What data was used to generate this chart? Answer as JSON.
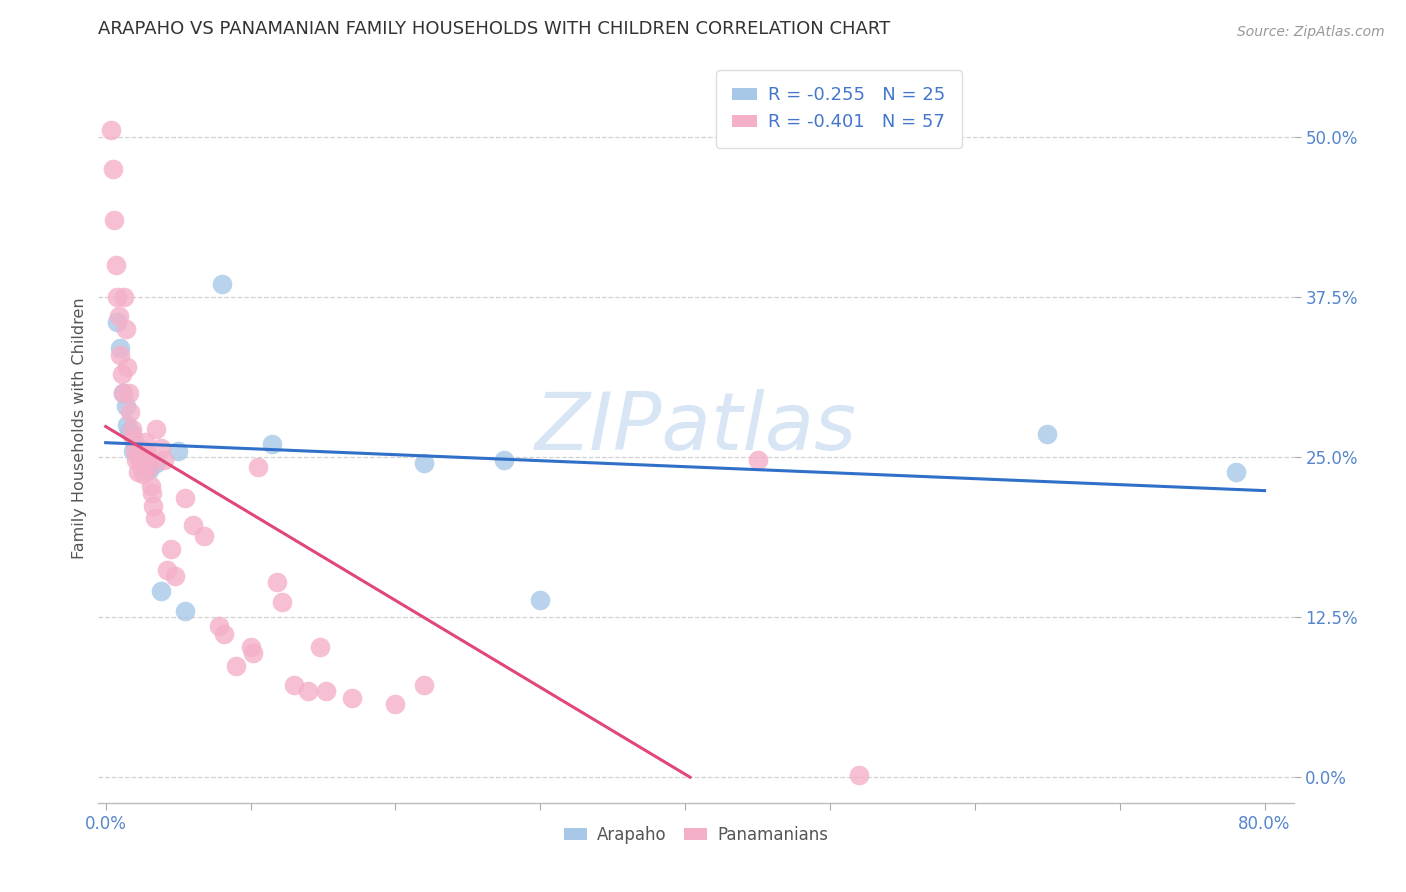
{
  "title": "ARAPAHO VS PANAMANIAN FAMILY HOUSEHOLDS WITH CHILDREN CORRELATION CHART",
  "source": "Source: ZipAtlas.com",
  "ylabel": "Family Households with Children",
  "watermark": "ZIPatlas",
  "blue_color": "#a8c8e8",
  "pink_color": "#f4b0c8",
  "blue_line_color": "#3070c8",
  "pink_line_color": "#e04878",
  "legend_blue_text": "R = -0.255   N = 25",
  "legend_pink_text": "R = -0.401   N = 57",
  "xlim": [
    -0.005,
    0.82
  ],
  "ylim": [
    -0.02,
    0.565
  ],
  "ytick_positions": [
    0.0,
    0.125,
    0.25,
    0.375,
    0.5
  ],
  "ytick_labels": [
    "0.0%",
    "12.5%",
    "25.0%",
    "37.5%",
    "50.0%"
  ],
  "xtick_positions": [
    0.0,
    0.1,
    0.2,
    0.3,
    0.4,
    0.5,
    0.6,
    0.7,
    0.8
  ],
  "arapaho_x": [
    0.008,
    0.01,
    0.012,
    0.014,
    0.015,
    0.016,
    0.018,
    0.019,
    0.02,
    0.022,
    0.025,
    0.026,
    0.028,
    0.03,
    0.035,
    0.038,
    0.05,
    0.055,
    0.08,
    0.115,
    0.22,
    0.275,
    0.3,
    0.65,
    0.78
  ],
  "arapaho_y": [
    0.355,
    0.335,
    0.3,
    0.29,
    0.275,
    0.27,
    0.268,
    0.255,
    0.26,
    0.25,
    0.255,
    0.245,
    0.24,
    0.24,
    0.245,
    0.145,
    0.255,
    0.13,
    0.385,
    0.26,
    0.245,
    0.248,
    0.138,
    0.268,
    0.238
  ],
  "panamanian_x": [
    0.004,
    0.005,
    0.006,
    0.007,
    0.008,
    0.009,
    0.01,
    0.011,
    0.012,
    0.013,
    0.014,
    0.015,
    0.016,
    0.017,
    0.018,
    0.019,
    0.02,
    0.021,
    0.022,
    0.023,
    0.024,
    0.025,
    0.026,
    0.027,
    0.028,
    0.029,
    0.03,
    0.031,
    0.032,
    0.033,
    0.034,
    0.035,
    0.038,
    0.04,
    0.042,
    0.045,
    0.048,
    0.055,
    0.06,
    0.068,
    0.078,
    0.082,
    0.09,
    0.1,
    0.102,
    0.105,
    0.118,
    0.122,
    0.13,
    0.14,
    0.148,
    0.152,
    0.17,
    0.2,
    0.22,
    0.45,
    0.52
  ],
  "panamanian_y": [
    0.505,
    0.475,
    0.435,
    0.4,
    0.375,
    0.36,
    0.33,
    0.315,
    0.3,
    0.375,
    0.35,
    0.32,
    0.3,
    0.285,
    0.272,
    0.265,
    0.255,
    0.248,
    0.238,
    0.255,
    0.248,
    0.242,
    0.237,
    0.262,
    0.255,
    0.247,
    0.242,
    0.227,
    0.222,
    0.212,
    0.202,
    0.272,
    0.257,
    0.248,
    0.162,
    0.178,
    0.157,
    0.218,
    0.197,
    0.188,
    0.118,
    0.112,
    0.087,
    0.102,
    0.097,
    0.242,
    0.152,
    0.137,
    0.072,
    0.067,
    0.102,
    0.067,
    0.062,
    0.057,
    0.072,
    0.248,
    0.002
  ]
}
